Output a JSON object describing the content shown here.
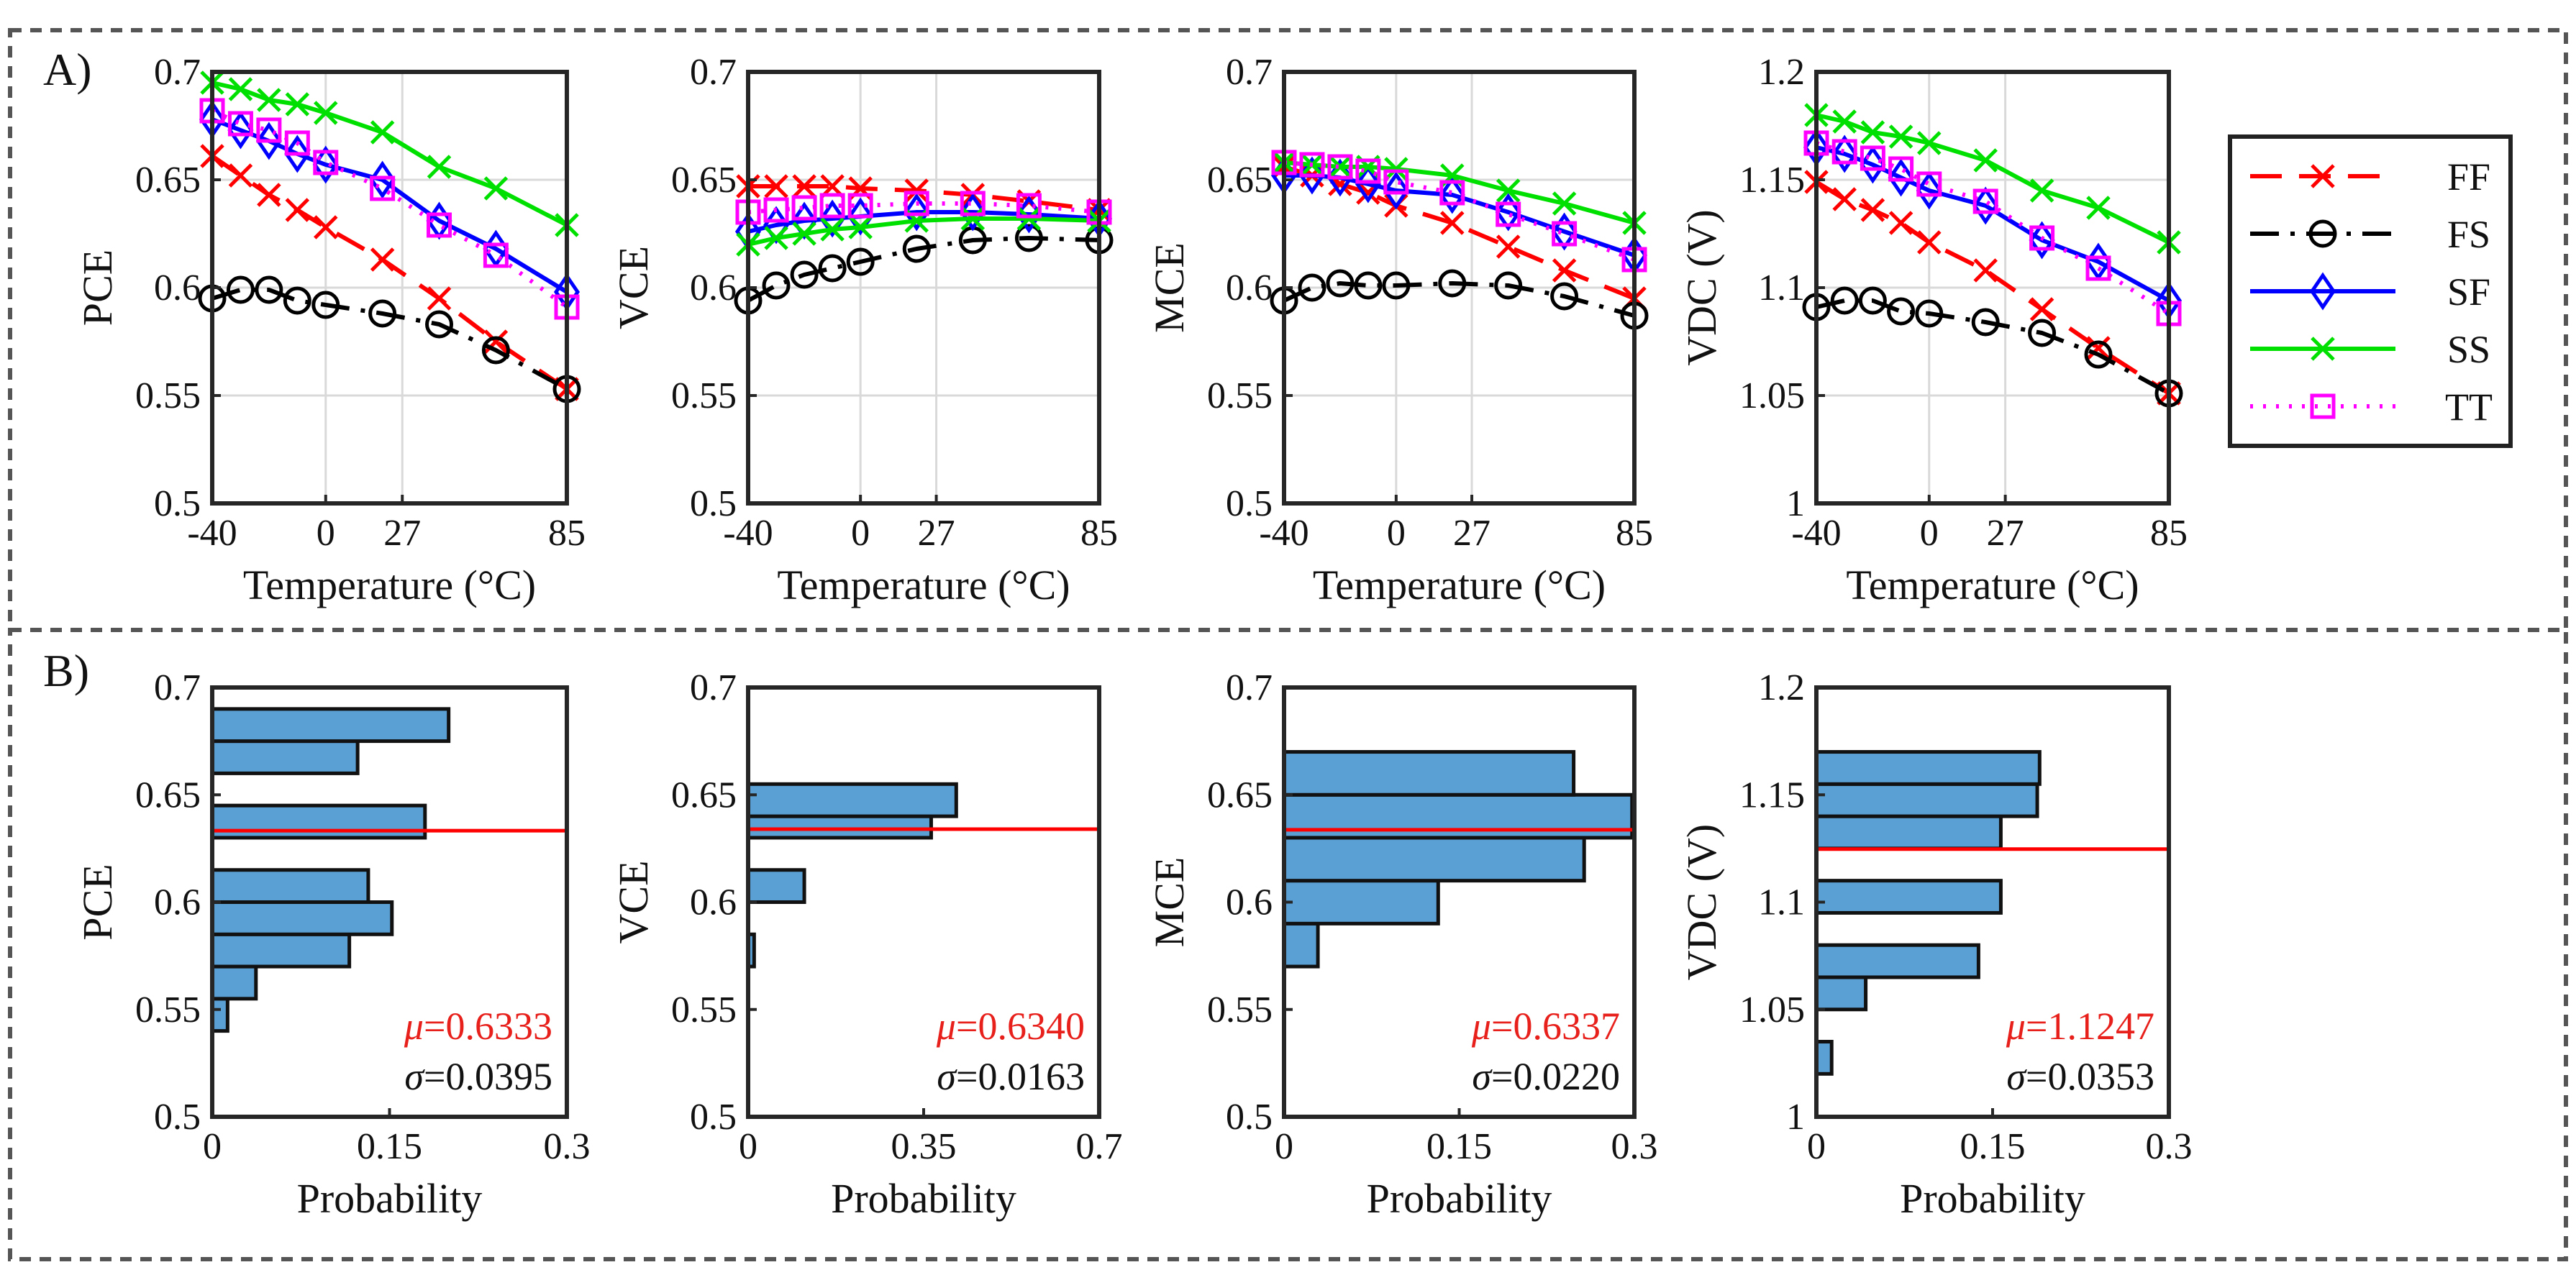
{
  "figure": {
    "panel_a_label": "A)",
    "panel_b_label": "B)"
  },
  "legend": [
    {
      "name": "FF",
      "color": "#ff0000",
      "marker": "x-mark-icon",
      "dash": "dashed"
    },
    {
      "name": "FS",
      "color": "#000000",
      "marker": "circle-icon",
      "dash": "dash-dot"
    },
    {
      "name": "SF",
      "color": "#0000ff",
      "marker": "diamond-icon",
      "dash": "solid"
    },
    {
      "name": "SS",
      "color": "#00e000",
      "marker": "x-mark-icon",
      "dash": "solid"
    },
    {
      "name": "TT",
      "color": "#ff00ff",
      "marker": "square-icon",
      "dash": "dotted"
    }
  ],
  "chart_data": [
    {
      "type": "line",
      "panel": "A",
      "title": "",
      "xlabel": "Temperature (°C)",
      "ylabel": "PCE",
      "xlim": [
        -40,
        85
      ],
      "ylim": [
        0.5,
        0.7
      ],
      "xticks": [
        "-40",
        "0",
        "27",
        "85"
      ],
      "yticks": [
        "0.5",
        "0.55",
        "0.6",
        "0.65",
        "0.7"
      ],
      "grid": true,
      "x": [
        -40,
        -30,
        -20,
        -10,
        0,
        20,
        40,
        60,
        85
      ],
      "series": [
        {
          "name": "FF",
          "values": [
            0.661,
            0.652,
            0.643,
            0.636,
            0.628,
            0.613,
            0.595,
            0.575,
            0.553
          ]
        },
        {
          "name": "FS",
          "values": [
            0.595,
            0.599,
            0.599,
            0.594,
            0.592,
            0.588,
            0.583,
            0.571,
            0.553
          ]
        },
        {
          "name": "SF",
          "values": [
            0.678,
            0.673,
            0.668,
            0.662,
            0.657,
            0.65,
            0.631,
            0.618,
            0.598
          ]
        },
        {
          "name": "SS",
          "values": [
            0.695,
            0.692,
            0.687,
            0.685,
            0.681,
            0.672,
            0.656,
            0.646,
            0.629
          ]
        },
        {
          "name": "TT",
          "values": [
            0.682,
            0.676,
            0.673,
            0.667,
            0.658,
            0.646,
            0.629,
            0.615,
            0.591
          ]
        }
      ]
    },
    {
      "type": "line",
      "panel": "A",
      "title": "",
      "xlabel": "Temperature (°C)",
      "ylabel": "VCE",
      "xlim": [
        -40,
        85
      ],
      "ylim": [
        0.5,
        0.7
      ],
      "xticks": [
        "-40",
        "0",
        "27",
        "85"
      ],
      "yticks": [
        "0.5",
        "0.55",
        "0.6",
        "0.65",
        "0.7"
      ],
      "grid": true,
      "x": [
        -40,
        -30,
        -20,
        -10,
        0,
        20,
        40,
        60,
        85
      ],
      "series": [
        {
          "name": "FF",
          "values": [
            0.647,
            0.647,
            0.647,
            0.647,
            0.646,
            0.645,
            0.643,
            0.64,
            0.636
          ]
        },
        {
          "name": "FS",
          "values": [
            0.594,
            0.601,
            0.606,
            0.609,
            0.612,
            0.618,
            0.622,
            0.623,
            0.622
          ]
        },
        {
          "name": "SF",
          "values": [
            0.626,
            0.629,
            0.631,
            0.632,
            0.633,
            0.635,
            0.635,
            0.634,
            0.632
          ]
        },
        {
          "name": "SS",
          "values": [
            0.62,
            0.623,
            0.625,
            0.627,
            0.628,
            0.631,
            0.632,
            0.632,
            0.631
          ]
        },
        {
          "name": "TT",
          "values": [
            0.635,
            0.636,
            0.637,
            0.638,
            0.638,
            0.639,
            0.639,
            0.638,
            0.635
          ]
        }
      ]
    },
    {
      "type": "line",
      "panel": "A",
      "title": "",
      "xlabel": "Temperature (°C)",
      "ylabel": "MCE",
      "xlim": [
        -40,
        85
      ],
      "ylim": [
        0.5,
        0.7
      ],
      "xticks": [
        "-40",
        "0",
        "27",
        "85"
      ],
      "yticks": [
        "0.5",
        "0.55",
        "0.6",
        "0.65",
        "0.7"
      ],
      "grid": true,
      "x": [
        -40,
        -30,
        -20,
        -10,
        0,
        20,
        40,
        60,
        85
      ],
      "series": [
        {
          "name": "FF",
          "values": [
            0.656,
            0.652,
            0.648,
            0.644,
            0.638,
            0.63,
            0.619,
            0.608,
            0.595
          ]
        },
        {
          "name": "FS",
          "values": [
            0.594,
            0.6,
            0.602,
            0.601,
            0.601,
            0.602,
            0.601,
            0.596,
            0.587
          ]
        },
        {
          "name": "SF",
          "values": [
            0.652,
            0.652,
            0.651,
            0.648,
            0.645,
            0.643,
            0.635,
            0.626,
            0.615
          ]
        },
        {
          "name": "SS",
          "values": [
            0.658,
            0.657,
            0.656,
            0.656,
            0.655,
            0.652,
            0.645,
            0.639,
            0.63
          ]
        },
        {
          "name": "TT",
          "values": [
            0.658,
            0.657,
            0.656,
            0.654,
            0.649,
            0.644,
            0.634,
            0.625,
            0.613
          ]
        }
      ]
    },
    {
      "type": "line",
      "panel": "A",
      "title": "",
      "xlabel": "Temperature (°C)",
      "ylabel": "VDC (V)",
      "xlim": [
        -40,
        85
      ],
      "ylim": [
        1,
        1.2
      ],
      "xticks": [
        "-40",
        "0",
        "27",
        "85"
      ],
      "yticks": [
        "1",
        "1.05",
        "1.1",
        "1.15",
        "1.2"
      ],
      "grid": true,
      "x": [
        -40,
        -30,
        -20,
        -10,
        0,
        20,
        40,
        60,
        85
      ],
      "series": [
        {
          "name": "FF",
          "values": [
            1.149,
            1.141,
            1.136,
            1.13,
            1.121,
            1.108,
            1.09,
            1.072,
            1.051
          ]
        },
        {
          "name": "FS",
          "values": [
            1.091,
            1.094,
            1.094,
            1.089,
            1.088,
            1.084,
            1.079,
            1.069,
            1.051
          ]
        },
        {
          "name": "SF",
          "values": [
            1.165,
            1.162,
            1.157,
            1.151,
            1.145,
            1.138,
            1.122,
            1.112,
            1.094
          ]
        },
        {
          "name": "SS",
          "values": [
            1.18,
            1.177,
            1.172,
            1.17,
            1.167,
            1.159,
            1.145,
            1.137,
            1.121
          ]
        },
        {
          "name": "TT",
          "values": [
            1.167,
            1.163,
            1.16,
            1.155,
            1.148,
            1.14,
            1.123,
            1.109,
            1.088
          ]
        }
      ]
    },
    {
      "type": "bar",
      "orientation": "horizontal",
      "panel": "B",
      "title": "",
      "xlabel": "Probability",
      "ylabel": "PCE",
      "xlim": [
        0,
        0.3
      ],
      "ylim": [
        0.5,
        0.7
      ],
      "xticks": [
        "0",
        "0.15",
        "0.3"
      ],
      "yticks": [
        "0.5",
        "0.55",
        "0.6",
        "0.65",
        "0.7"
      ],
      "bins": [
        [
          0.54,
          0.555
        ],
        [
          0.555,
          0.57
        ],
        [
          0.57,
          0.585
        ],
        [
          0.585,
          0.6
        ],
        [
          0.6,
          0.615
        ],
        [
          0.615,
          0.63
        ],
        [
          0.63,
          0.645
        ],
        [
          0.645,
          0.66
        ],
        [
          0.66,
          0.675
        ],
        [
          0.675,
          0.69
        ]
      ],
      "values": [
        0.013,
        0.037,
        0.116,
        0.152,
        0.132,
        0.0,
        0.18,
        0.0,
        0.123,
        0.2
      ],
      "mean": 0.6333,
      "mu_text": "=0.6333",
      "sigma_text": "=0.0395"
    },
    {
      "type": "bar",
      "orientation": "horizontal",
      "panel": "B",
      "title": "",
      "xlabel": "Probability",
      "ylabel": "VCE",
      "xlim": [
        0,
        0.7
      ],
      "ylim": [
        0.5,
        0.7
      ],
      "xticks": [
        "0",
        "0.35",
        "0.7"
      ],
      "yticks": [
        "0.5",
        "0.55",
        "0.6",
        "0.65",
        "0.7"
      ],
      "bins": [
        [
          0.57,
          0.585
        ],
        [
          0.585,
          0.6
        ],
        [
          0.6,
          0.615
        ],
        [
          0.615,
          0.63
        ],
        [
          0.63,
          0.64
        ],
        [
          0.64,
          0.655
        ]
      ],
      "values": [
        0.012,
        0.0,
        0.112,
        0.0,
        0.365,
        0.415
      ],
      "mean": 0.634,
      "mu_text": "=0.6340",
      "sigma_text": "=0.0163"
    },
    {
      "type": "bar",
      "orientation": "horizontal",
      "panel": "B",
      "title": "",
      "xlabel": "Probability",
      "ylabel": "MCE",
      "xlim": [
        0,
        0.3
      ],
      "ylim": [
        0.5,
        0.7
      ],
      "xticks": [
        "0",
        "0.15",
        "0.3"
      ],
      "yticks": [
        "0.5",
        "0.55",
        "0.6",
        "0.65",
        "0.7"
      ],
      "bins": [
        [
          0.57,
          0.59
        ],
        [
          0.59,
          0.61
        ],
        [
          0.61,
          0.63
        ],
        [
          0.63,
          0.65
        ],
        [
          0.65,
          0.67
        ]
      ],
      "values": [
        0.029,
        0.132,
        0.257,
        0.298,
        0.248
      ],
      "mean": 0.6337,
      "mu_text": "=0.6337",
      "sigma_text": "=0.0220"
    },
    {
      "type": "bar",
      "orientation": "horizontal",
      "panel": "B",
      "title": "",
      "xlabel": "Probability",
      "ylabel": "VDC (V)",
      "xlim": [
        0,
        0.3
      ],
      "ylim": [
        1,
        1.2
      ],
      "xticks": [
        "0",
        "0.15",
        "0.3"
      ],
      "yticks": [
        "1",
        "1.05",
        "1.1",
        "1.15",
        "1.2"
      ],
      "bins": [
        [
          1.02,
          1.035
        ],
        [
          1.035,
          1.05
        ],
        [
          1.05,
          1.065
        ],
        [
          1.065,
          1.08
        ],
        [
          1.08,
          1.095
        ],
        [
          1.095,
          1.11
        ],
        [
          1.11,
          1.125
        ],
        [
          1.125,
          1.14
        ],
        [
          1.14,
          1.155
        ],
        [
          1.155,
          1.17
        ]
      ],
      "values": [
        0.013,
        0.0,
        0.042,
        0.138,
        0.0,
        0.157,
        0.0,
        0.157,
        0.188,
        0.19
      ],
      "mean": 1.1247,
      "mu_text": "=1.1247",
      "sigma_text": "=0.0353"
    }
  ]
}
